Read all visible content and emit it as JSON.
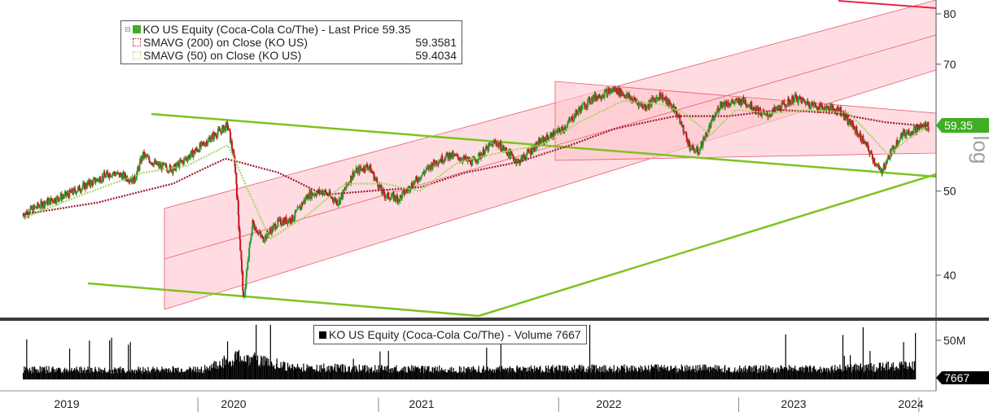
{
  "legend_price": {
    "title": "KO US Equity (Coca-Cola Co/The) - Last Price 59.35",
    "sma200_label": "SMAVG (200)  on Close (KO US)",
    "sma200_value": "59.3581",
    "sma50_label": "SMAVG (50)  on Close (KO US)",
    "sma50_value": "59.4034"
  },
  "legend_volume": {
    "title": "KO US Equity (Coca-Cola Co/The) - Volume 7667"
  },
  "colors": {
    "price_up": "#2e9e2e",
    "price_down": "#c0171f",
    "sma200": "#9c1b2a",
    "sma50": "#a8d46a",
    "trendline_green": "#7dc31e",
    "channel_fill": "#ffd6dc",
    "channel_line": "#e95b6e",
    "upper_red_line": "#e8254a",
    "last_price_tag": "#3fae24",
    "volume_bar": "#000000"
  },
  "chart_data": {
    "type": "line",
    "title": "KO US Equity (Coca-Cola Co/The)",
    "y_scale": "log",
    "y_axis_label": "log",
    "ylim": [
      35,
      82
    ],
    "y_ticks": [
      "80",
      "70",
      "50",
      "40"
    ],
    "x_ticks": [
      "2019",
      "2020",
      "2021",
      "2022",
      "2023",
      "2024"
    ],
    "last_price_label": "59.35",
    "series": [
      {
        "name": "KO US Equity (Coca-Cola Co/The) - Last Price",
        "x": [
          "2019-01-01",
          "2019-02-15",
          "2019-04-01",
          "2019-05-15",
          "2019-07-01",
          "2019-08-15",
          "2019-09-01",
          "2019-10-01",
          "2019-11-01",
          "2019-12-15",
          "2020-01-15",
          "2020-02-20",
          "2020-03-05",
          "2020-03-23",
          "2020-04-10",
          "2020-05-01",
          "2020-06-01",
          "2020-07-01",
          "2020-08-01",
          "2020-09-01",
          "2020-10-01",
          "2020-11-01",
          "2020-12-01",
          "2021-01-01",
          "2021-02-01",
          "2021-03-01",
          "2021-04-15",
          "2021-05-15",
          "2021-07-01",
          "2021-08-15",
          "2021-10-01",
          "2021-11-15",
          "2022-01-01",
          "2022-02-01",
          "2022-03-01",
          "2022-04-15",
          "2022-05-15",
          "2022-06-15",
          "2022-07-15",
          "2022-08-15",
          "2022-09-15",
          "2022-10-01",
          "2022-11-15",
          "2023-01-01",
          "2023-02-15",
          "2023-04-15",
          "2023-06-01",
          "2023-07-15",
          "2023-09-01",
          "2023-10-05",
          "2023-11-15",
          "2024-01-01",
          "2024-01-12"
        ],
        "values": [
          47.0,
          48.5,
          49.5,
          51.0,
          52.5,
          51.5,
          55.0,
          53.5,
          53.0,
          55.5,
          57.5,
          59.5,
          54.0,
          37.0,
          46.0,
          44.0,
          46.0,
          46.5,
          49.5,
          50.0,
          48.5,
          52.5,
          53.5,
          49.5,
          49.0,
          51.0,
          54.0,
          55.0,
          54.0,
          57.0,
          54.0,
          57.0,
          59.0,
          62.0,
          64.0,
          65.5,
          64.0,
          62.5,
          64.5,
          62.0,
          56.0,
          55.5,
          63.0,
          63.5,
          61.0,
          64.0,
          62.5,
          62.0,
          57.0,
          52.5,
          58.0,
          59.5,
          59.35
        ]
      },
      {
        "name": "SMAVG (200)  on Close (KO US)",
        "x": [
          "2019-01-01",
          "2019-06-01",
          "2019-11-01",
          "2020-02-15",
          "2020-06-01",
          "2020-09-01",
          "2020-12-01",
          "2021-03-15",
          "2021-06-15",
          "2021-10-01",
          "2022-01-15",
          "2022-04-15",
          "2022-08-15",
          "2022-12-01",
          "2023-03-15",
          "2023-07-01",
          "2023-10-15",
          "2024-01-12"
        ],
        "values": [
          47.0,
          48.5,
          51.0,
          54.5,
          52.5,
          49.5,
          50.0,
          50.5,
          52.5,
          54.0,
          56.5,
          59.0,
          61.0,
          61.0,
          62.0,
          61.5,
          60.0,
          59.3581
        ]
      },
      {
        "name": "SMAVG (50)  on Close (KO US)",
        "x": [
          "2019-01-01",
          "2019-05-01",
          "2019-09-01",
          "2019-12-01",
          "2020-02-20",
          "2020-04-01",
          "2020-05-15",
          "2020-08-01",
          "2020-10-15",
          "2021-01-01",
          "2021-03-15",
          "2021-06-01",
          "2021-09-01",
          "2021-11-15",
          "2022-02-01",
          "2022-05-01",
          "2022-07-15",
          "2022-09-01",
          "2022-10-25",
          "2022-12-15",
          "2023-03-01",
          "2023-05-15",
          "2023-08-01",
          "2023-10-20",
          "2023-12-01",
          "2024-01-12"
        ],
        "values": [
          46.5,
          49.5,
          52.5,
          53.5,
          56.5,
          50.0,
          44.0,
          47.0,
          51.0,
          51.0,
          50.0,
          54.0,
          55.5,
          56.5,
          60.0,
          63.5,
          63.0,
          61.5,
          58.0,
          62.0,
          61.5,
          62.0,
          61.5,
          55.0,
          57.5,
          59.4034
        ]
      }
    ],
    "volume": {
      "title": "KO US Equity (Coca-Cola Co/The) - Volume",
      "y_ticks": [
        "50M"
      ],
      "last_value_label": "7667",
      "x": [
        "2019-01-01",
        "2019-07-01",
        "2020-01-01",
        "2020-03-15",
        "2020-07-01",
        "2021-01-01",
        "2021-07-01",
        "2022-01-01",
        "2022-07-01",
        "2023-01-01",
        "2023-07-01",
        "2023-12-15"
      ],
      "values": [
        14,
        13,
        14,
        32,
        17,
        15,
        14,
        15,
        16,
        15,
        15,
        20
      ]
    }
  }
}
